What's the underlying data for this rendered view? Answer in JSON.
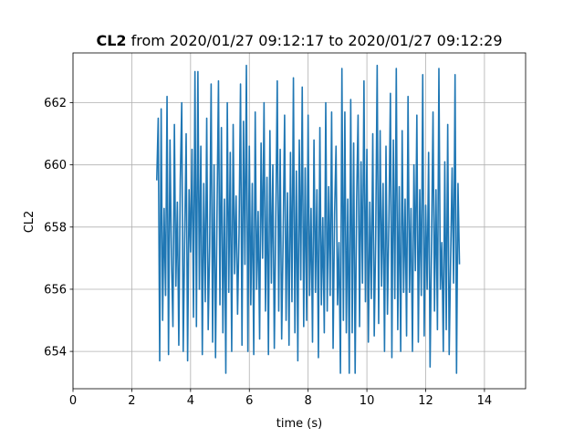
{
  "chart_data": {
    "type": "line",
    "title_bold": "CL2",
    "title_rest": " from 2020/01/27 09:12:17 to 2020/01/27 09:12:29",
    "xlabel": "time (s)",
    "ylabel": "CL2",
    "xlim": [
      0,
      15.4
    ],
    "ylim": [
      652.8,
      663.6
    ],
    "x_ticks": [
      0,
      2,
      4,
      6,
      8,
      10,
      12,
      14
    ],
    "y_ticks": [
      654,
      656,
      658,
      660,
      662
    ],
    "grid": true,
    "line_color": "#1f77b4",
    "series": [
      {
        "x_start": 2.85,
        "x_step": 0.05,
        "values": [
          659.5,
          661.5,
          653.7,
          661.8,
          655.0,
          658.6,
          655.8,
          662.2,
          653.9,
          660.8,
          657.0,
          654.8,
          661.3,
          656.1,
          658.8,
          654.2,
          659.5,
          662.0,
          654.0,
          657.6,
          661.0,
          653.7,
          659.2,
          657.2,
          660.5,
          655.1,
          663.0,
          654.8,
          663.0,
          656.0,
          660.6,
          653.9,
          659.4,
          655.6,
          661.5,
          654.7,
          657.4,
          662.6,
          654.3,
          660.0,
          653.8,
          658.4,
          662.7,
          655.5,
          661.2,
          654.6,
          658.9,
          653.3,
          662.0,
          655.9,
          660.4,
          654.0,
          661.3,
          656.5,
          659.0,
          655.2,
          657.8,
          662.6,
          654.2,
          661.4,
          656.8,
          663.2,
          654.0,
          660.6,
          655.5,
          659.4,
          653.9,
          661.7,
          656.0,
          658.5,
          654.4,
          660.7,
          657.0,
          662.0,
          655.3,
          659.6,
          653.9,
          661.1,
          656.2,
          660.0,
          654.1,
          658.2,
          662.7,
          655.3,
          660.5,
          654.4,
          657.6,
          661.6,
          655.0,
          659.1,
          654.2,
          660.4,
          655.6,
          662.8,
          654.6,
          659.8,
          653.7,
          660.8,
          656.3,
          662.5,
          654.8,
          659.9,
          655.0,
          661.6,
          655.8,
          658.6,
          654.3,
          660.8,
          655.9,
          659.2,
          653.8,
          661.2,
          655.5,
          658.3,
          654.6,
          662.0,
          655.3,
          659.3,
          655.8,
          661.7,
          654.1,
          658.4,
          660.6,
          655.5,
          657.5,
          653.3,
          663.1,
          655.0,
          661.7,
          654.6,
          658.9,
          653.3,
          662.1,
          654.6,
          660.7,
          653.3,
          658.8,
          661.6,
          654.8,
          660.1,
          656.2,
          662.7,
          655.6,
          660.5,
          654.3,
          658.8,
          655.7,
          661.0,
          654.5,
          657.7,
          663.2,
          654.9,
          661.1,
          656.1,
          659.4,
          654.0,
          660.6,
          655.2,
          658.2,
          662.3,
          653.8,
          660.8,
          655.7,
          663.1,
          654.7,
          659.3,
          654.0,
          661.1,
          655.9,
          658.9,
          654.5,
          662.2,
          655.9,
          658.6,
          654.0,
          660.0,
          656.6,
          661.6,
          654.3,
          659.2,
          655.8,
          662.9,
          654.5,
          658.7,
          656.0,
          660.4,
          653.5,
          657.5,
          661.7,
          655.3,
          659.2,
          654.7,
          663.1,
          656.0,
          657.5,
          654.0,
          660.1,
          654.7,
          661.3,
          653.9,
          657.0,
          659.9,
          656.2,
          662.9,
          653.3,
          659.4,
          656.8
        ]
      }
    ]
  }
}
